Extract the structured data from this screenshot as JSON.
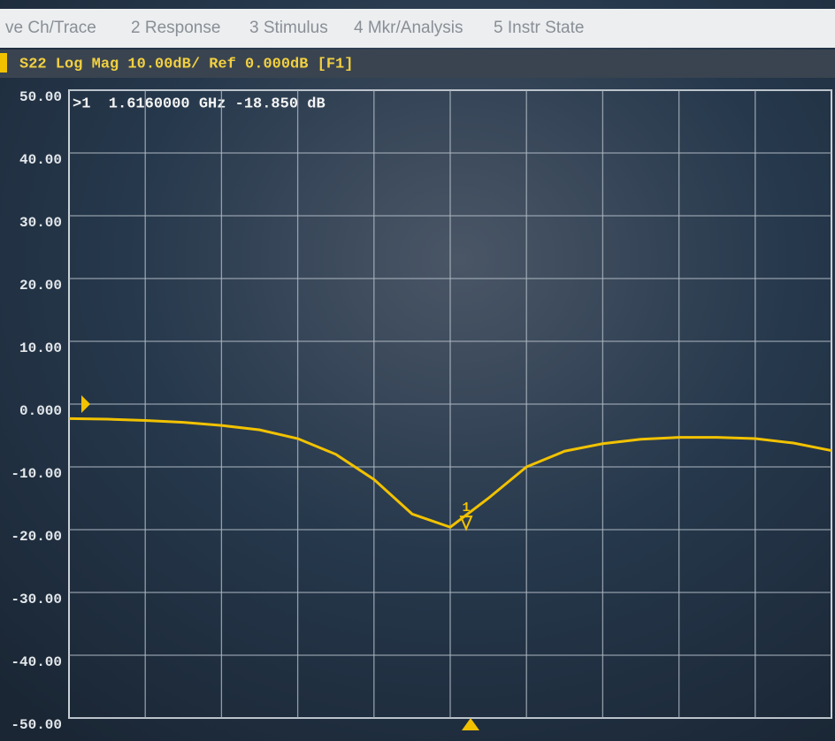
{
  "menu": [
    "ve Ch/Trace",
    "2 Response",
    "3 Stimulus",
    "4 Mkr/Analysis",
    "5 Instr State"
  ],
  "chart_data": {
    "type": "line",
    "title": "S22 Log Mag 10.00dB/ Ref 0.000dB [F1]",
    "annotation": ">1  1.6160000 GHz -18.850 dB",
    "marker_label": "1",
    "values": [
      -2.3,
      -2.4,
      -2.6,
      -2.9,
      -3.4,
      -4.1,
      -5.5,
      -8.0,
      -12.0,
      -17.5,
      -19.6,
      -15.0,
      -10.0,
      -7.5,
      -6.3,
      -5.6,
      -5.3,
      -5.3,
      -5.5,
      -6.2,
      -7.4
    ],
    "color": "#f2c200",
    "ylim": [
      -50,
      50
    ],
    "yticks": [
      {
        "value": -50,
        "label": "-50.00"
      },
      {
        "value": -40,
        "label": "-40.00"
      },
      {
        "value": -30,
        "label": "-30.00"
      },
      {
        "value": -20,
        "label": "-20.00"
      },
      {
        "value": -10,
        "label": "-10.00"
      },
      {
        "value": 0,
        "label": "0.000"
      },
      {
        "value": 10,
        "label": "10.00"
      },
      {
        "value": 20,
        "label": "20.00"
      },
      {
        "value": 30,
        "label": "30.00"
      },
      {
        "value": 40,
        "label": "40.00"
      },
      {
        "value": 50,
        "label": "50.00"
      }
    ],
    "grid": true
  }
}
